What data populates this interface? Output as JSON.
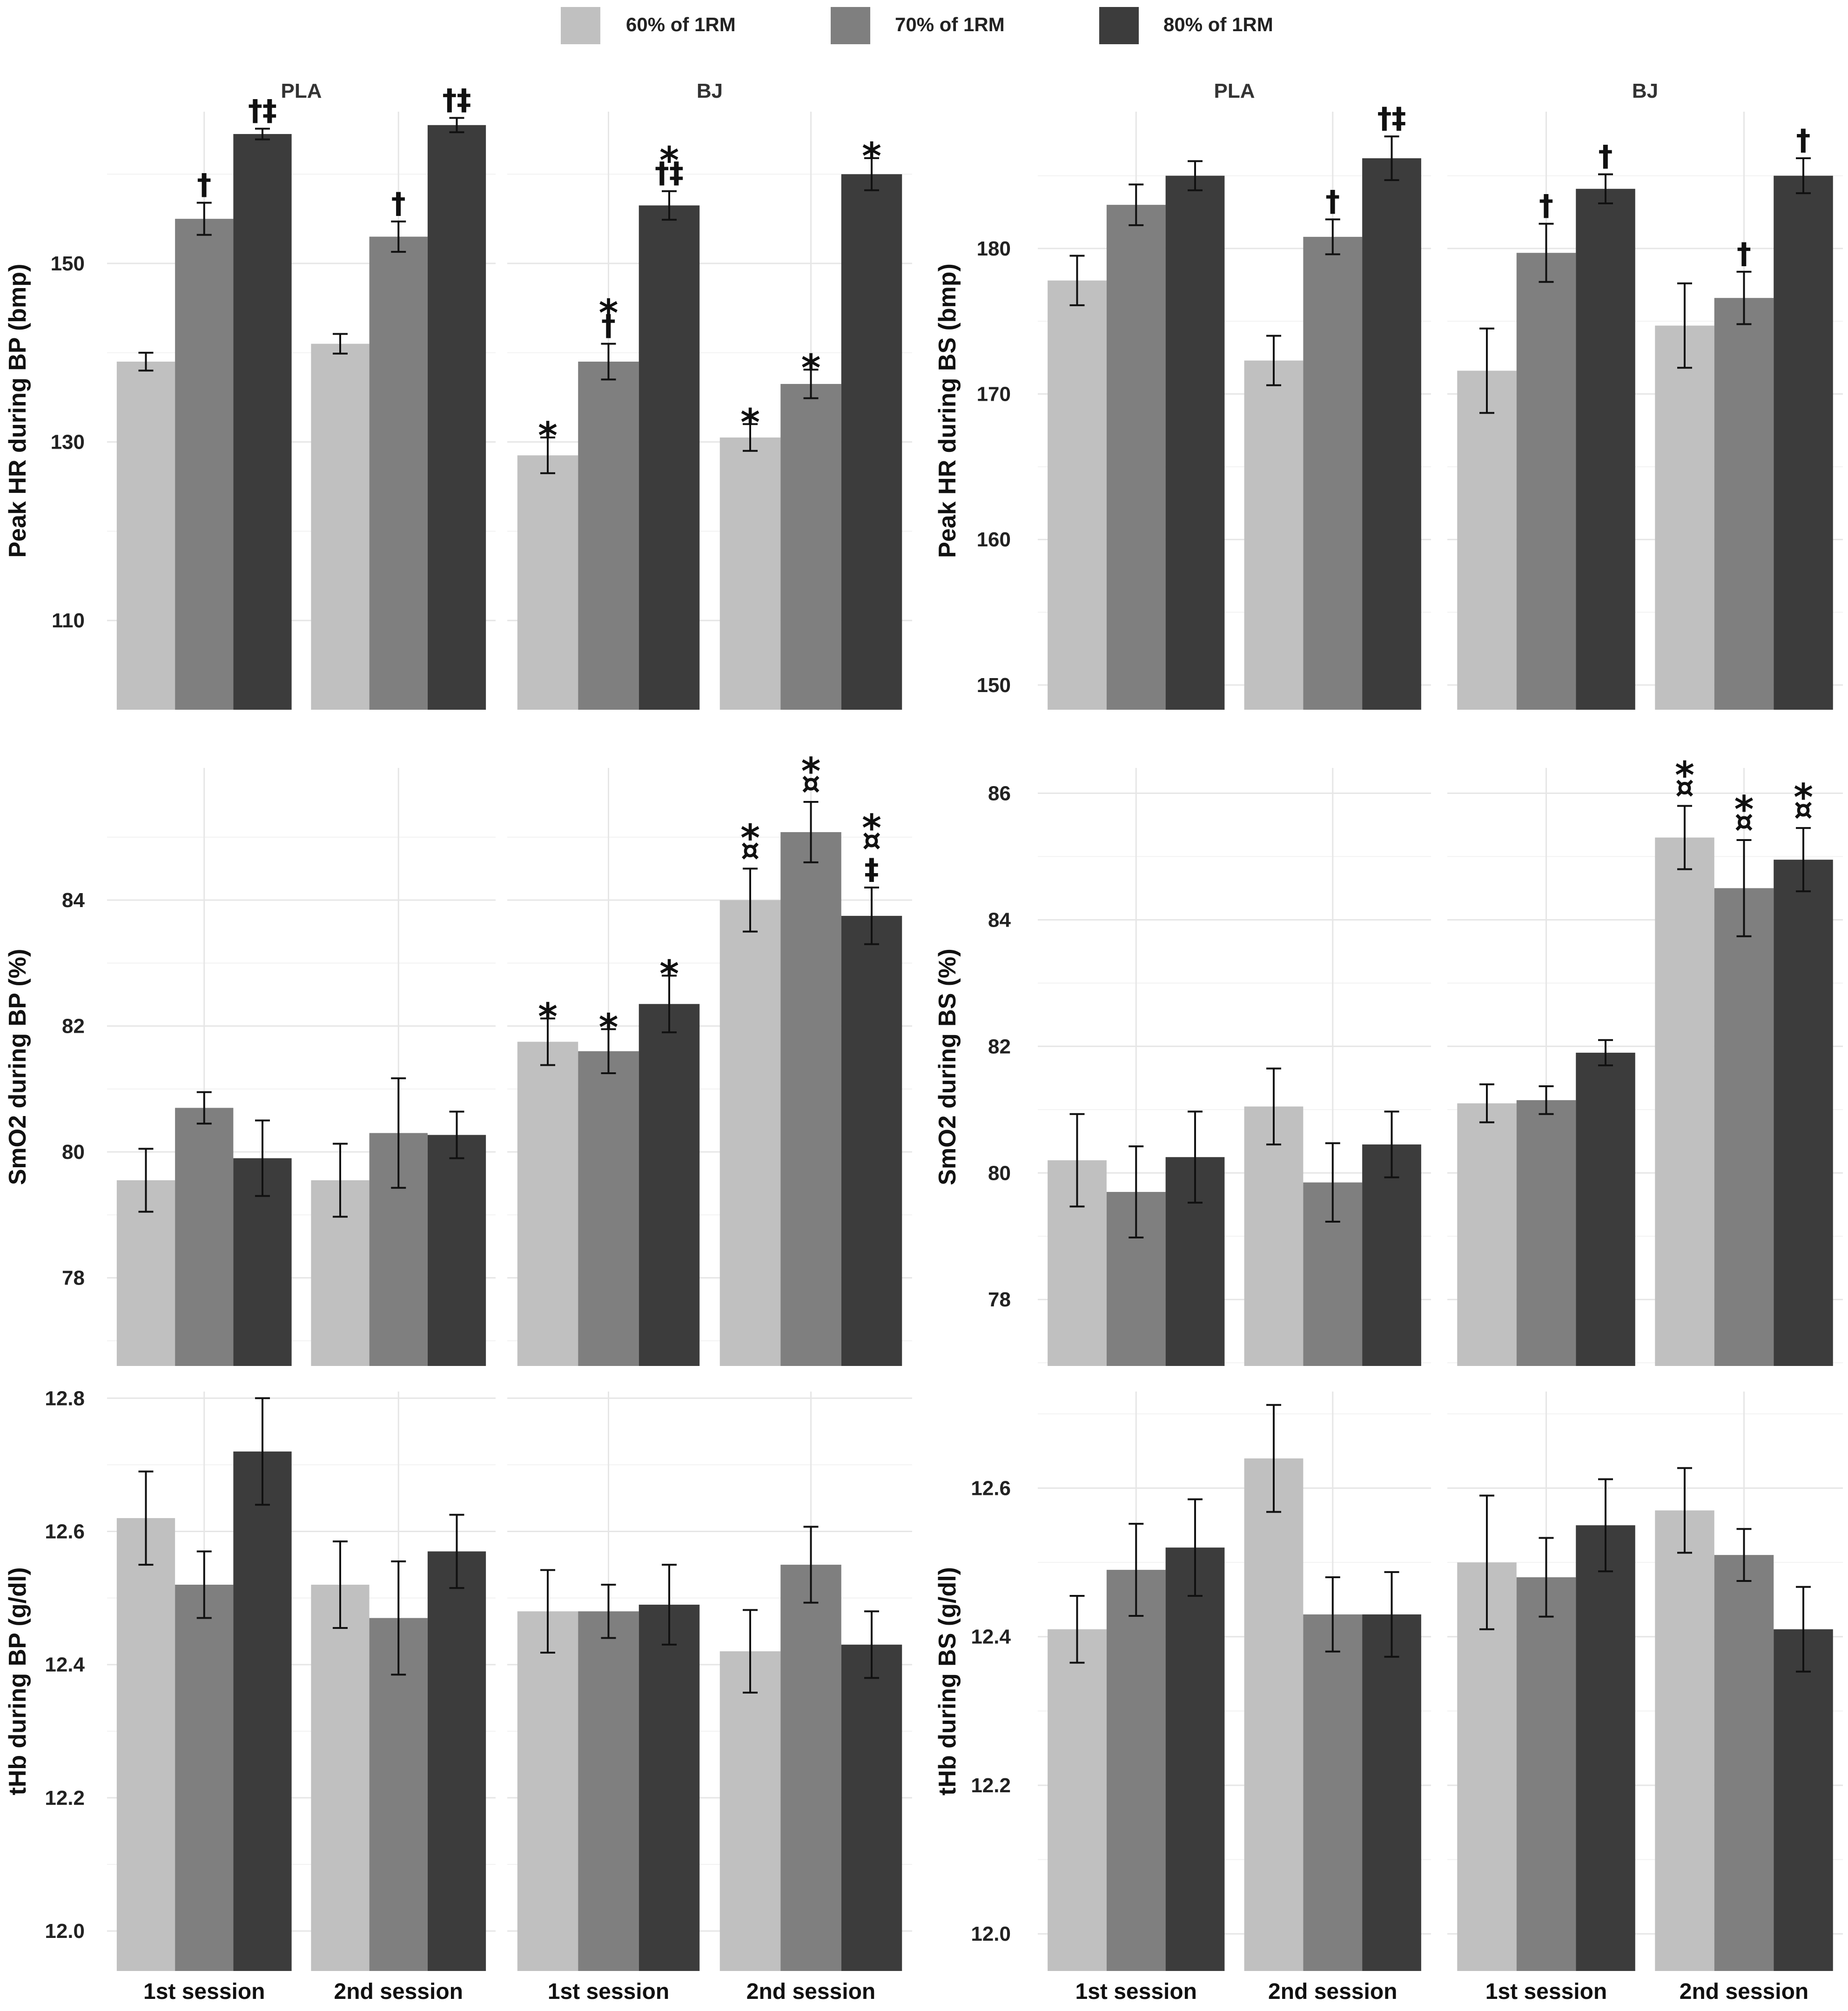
{
  "legend": [
    {
      "label": "60% of 1RM",
      "color": "#c0c0c0"
    },
    {
      "label": "70% of 1RM",
      "color": "#7f7f7f"
    },
    {
      "label": "80% of 1RM",
      "color": "#3c3c3c"
    }
  ],
  "chart_data": [
    {
      "type": "bar",
      "id": "hr-bp",
      "ylabel": "Peak HR during BP (bmp)",
      "ylim": [
        100,
        167
      ],
      "yticks": [
        110,
        130,
        150
      ],
      "categories": [
        "1st session",
        "2nd session"
      ],
      "panels": [
        {
          "strip": "PLA",
          "values": [
            [
              139,
              155,
              164.5
            ],
            [
              141,
              153,
              165.5
            ]
          ],
          "errors": [
            [
              1,
              1.8,
              0.6
            ],
            [
              1.1,
              1.7,
              0.8
            ]
          ],
          "annotations": [
            [
              "",
              "†",
              "†‡"
            ],
            [
              "",
              "†",
              "†‡"
            ]
          ]
        },
        {
          "strip": "BJ",
          "values": [
            [
              128.5,
              139,
              156.5
            ],
            [
              130.5,
              136.5,
              160
            ]
          ],
          "errors": [
            [
              2,
              2,
              1.6
            ],
            [
              1.5,
              1.6,
              1.8
            ]
          ],
          "annotations": [
            [
              "*",
              "*†",
              "*†‡"
            ],
            [
              "*",
              "*",
              "*"
            ]
          ]
        }
      ]
    },
    {
      "type": "bar",
      "id": "hr-bs",
      "ylabel": "Peak HR during BS (bmp)",
      "ylim": [
        148.3,
        189.4
      ],
      "yticks": [
        150,
        160,
        170,
        180
      ],
      "categories": [
        "1st session",
        "2nd session"
      ],
      "panels": [
        {
          "strip": "PLA",
          "values": [
            [
              177.8,
              183,
              185
            ],
            [
              172.3,
              180.8,
              186.2
            ]
          ],
          "errors": [
            [
              1.7,
              1.4,
              1.0
            ],
            [
              1.7,
              1.2,
              1.5
            ]
          ],
          "annotations": [
            [
              "",
              "",
              ""
            ],
            [
              "",
              "†",
              "†‡"
            ]
          ]
        },
        {
          "strip": "BJ",
          "values": [
            [
              171.6,
              179.7,
              184.1
            ],
            [
              174.7,
              176.6,
              185
            ]
          ],
          "errors": [
            [
              2.9,
              2.0,
              1.0
            ],
            [
              2.9,
              1.8,
              1.2
            ]
          ],
          "annotations": [
            [
              "",
              "†",
              "†"
            ],
            [
              "",
              "†",
              "†"
            ]
          ]
        }
      ]
    },
    {
      "type": "bar",
      "id": "smo2-bp",
      "ylabel": "SmO2 during BP (%)",
      "ylim": [
        76.6,
        86.1
      ],
      "yticks": [
        78,
        80,
        82,
        84
      ],
      "categories": [
        "1st session",
        "2nd session"
      ],
      "panels": [
        {
          "strip": "",
          "values": [
            [
              79.55,
              80.7,
              79.9
            ],
            [
              79.55,
              80.3,
              80.27
            ]
          ],
          "errors": [
            [
              0.5,
              0.25,
              0.6
            ],
            [
              0.58,
              0.87,
              0.37
            ]
          ],
          "annotations": [
            [
              "",
              "",
              ""
            ],
            [
              "",
              "",
              ""
            ]
          ]
        },
        {
          "strip": "",
          "values": [
            [
              81.75,
              81.6,
              82.35
            ],
            [
              84,
              85.08,
              83.75
            ]
          ],
          "errors": [
            [
              0.37,
              0.35,
              0.45
            ],
            [
              0.5,
              0.48,
              0.45
            ]
          ],
          "annotations": [
            [
              "*",
              "*",
              "*"
            ],
            [
              "*¤",
              "*¤",
              "*¤‡"
            ]
          ]
        }
      ]
    },
    {
      "type": "bar",
      "id": "smo2-bs",
      "ylabel": "SmO2 during BS (%)",
      "ylim": [
        76.95,
        86.4
      ],
      "yticks": [
        78,
        80,
        82,
        84,
        86
      ],
      "categories": [
        "1st session",
        "2nd session"
      ],
      "panels": [
        {
          "strip": "",
          "values": [
            [
              80.2,
              79.7,
              80.25
            ],
            [
              81.05,
              79.85,
              80.45
            ]
          ],
          "errors": [
            [
              0.73,
              0.72,
              0.72
            ],
            [
              0.6,
              0.62,
              0.52
            ]
          ],
          "annotations": [
            [
              "",
              "",
              ""
            ],
            [
              "",
              "",
              ""
            ]
          ]
        },
        {
          "strip": "",
          "values": [
            [
              81.1,
              81.15,
              81.9
            ],
            [
              85.3,
              84.5,
              84.95
            ]
          ],
          "errors": [
            [
              0.3,
              0.22,
              0.2
            ],
            [
              0.5,
              0.76,
              0.5
            ]
          ],
          "annotations": [
            [
              "",
              "",
              ""
            ],
            [
              "*¤",
              "*¤",
              "*¤"
            ]
          ]
        }
      ]
    },
    {
      "type": "bar",
      "id": "thb-bp",
      "ylabel": "tHb during BP (g/dl)",
      "ylim": [
        11.94,
        12.81
      ],
      "yticks": [
        12.0,
        12.2,
        12.4,
        12.6,
        12.8
      ],
      "decimals": 1,
      "categories": [
        "1st session",
        "2nd session"
      ],
      "panels": [
        {
          "strip": "",
          "values": [
            [
              12.62,
              12.52,
              12.72
            ],
            [
              12.52,
              12.47,
              12.57
            ]
          ],
          "errors": [
            [
              0.07,
              0.05,
              0.08
            ],
            [
              0.065,
              0.085,
              0.055
            ]
          ],
          "annotations": [
            [
              "",
              "",
              ""
            ],
            [
              "",
              "",
              ""
            ]
          ]
        },
        {
          "strip": "",
          "values": [
            [
              12.48,
              12.48,
              12.49
            ],
            [
              12.42,
              12.55,
              12.43
            ]
          ],
          "errors": [
            [
              0.062,
              0.04,
              0.06
            ],
            [
              0.062,
              0.057,
              0.05
            ]
          ],
          "annotations": [
            [
              "",
              "",
              ""
            ],
            [
              "",
              "",
              ""
            ]
          ]
        }
      ]
    },
    {
      "type": "bar",
      "id": "thb-bs",
      "ylabel": "tHb during BS (g/dl)",
      "ylim": [
        11.95,
        12.73
      ],
      "yticks": [
        12.0,
        12.2,
        12.4,
        12.6
      ],
      "decimals": 1,
      "categories": [
        "1st session",
        "2nd session"
      ],
      "panels": [
        {
          "strip": "",
          "values": [
            [
              12.41,
              12.49,
              12.52
            ],
            [
              12.64,
              12.43,
              12.43
            ]
          ],
          "errors": [
            [
              0.045,
              0.062,
              0.065
            ],
            [
              0.072,
              0.05,
              0.057
            ]
          ],
          "annotations": [
            [
              "",
              "",
              ""
            ],
            [
              "",
              "",
              ""
            ]
          ]
        },
        {
          "strip": "",
          "values": [
            [
              12.5,
              12.48,
              12.55
            ],
            [
              12.57,
              12.51,
              12.41
            ]
          ],
          "errors": [
            [
              0.09,
              0.053,
              0.062
            ],
            [
              0.057,
              0.035,
              0.057
            ]
          ],
          "annotations": [
            [
              "",
              "",
              ""
            ],
            [
              "",
              "",
              ""
            ]
          ]
        }
      ]
    }
  ]
}
